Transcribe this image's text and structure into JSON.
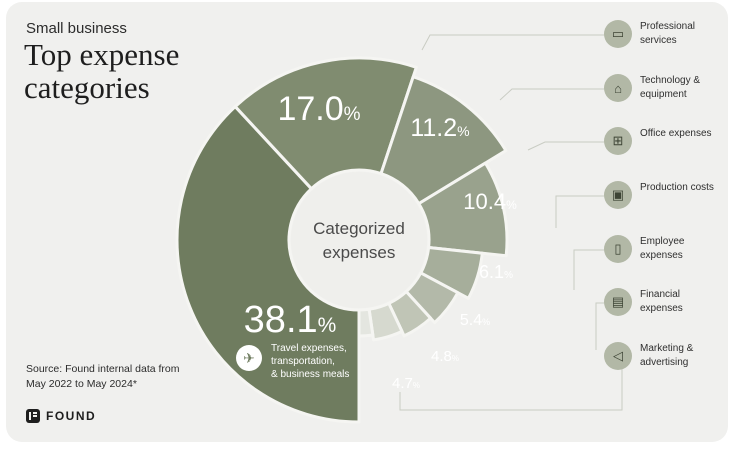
{
  "header": {
    "subtitle": "Small business",
    "title": "Top expense categories"
  },
  "source": "Source: Found internal data from May 2022 to May 2024*",
  "brand": "FOUND",
  "center_label": "Categorized expenses",
  "colors": {
    "travel": "#6f7c5f",
    "professional": "#808c70",
    "technology": "#8d9780",
    "office": "#99a28d",
    "production": "#a6ae9b",
    "employee": "#b3b9a9",
    "financial": "#c0c5b6",
    "marketing": "#d6d9cf",
    "icon_bg": "#b2b8a6"
  },
  "chart_data": {
    "type": "pie",
    "title": "Top expense categories",
    "subtitle": "Small business",
    "center_label": "Categorized expenses",
    "slices": [
      {
        "label": "Travel expenses, transportation, & business meals",
        "value": 38.1,
        "display": "38.1%"
      },
      {
        "label": "Professional services",
        "value": 17.0,
        "display": "17.0%"
      },
      {
        "label": "Technology & equipment",
        "value": 11.2,
        "display": "11.2%"
      },
      {
        "label": "Office expenses",
        "value": 10.4,
        "display": "10.4%"
      },
      {
        "label": "Production costs",
        "value": 6.1,
        "display": "6.1%"
      },
      {
        "label": "Employee expenses",
        "value": 5.4,
        "display": "5.4%"
      },
      {
        "label": "Financial expenses",
        "value": 4.8,
        "display": "4.8%"
      },
      {
        "label": "Marketing & advertising",
        "value": 4.7,
        "display": "4.7%"
      },
      {
        "label": "",
        "value": 2.3,
        "display": ""
      }
    ]
  },
  "legend": [
    {
      "label": "Professional services",
      "icon": "briefcase-icon",
      "glyph": "▭"
    },
    {
      "label": "Technology & equipment",
      "icon": "laptop-icon",
      "glyph": "⌂"
    },
    {
      "label": "Office expenses",
      "icon": "office-chair-icon",
      "glyph": "⊞"
    },
    {
      "label": "Production costs",
      "icon": "monitor-icon",
      "glyph": "▣"
    },
    {
      "label": "Employee expenses",
      "icon": "badge-icon",
      "glyph": "▯"
    },
    {
      "label": "Financial expenses",
      "icon": "money-icon",
      "glyph": "▤"
    },
    {
      "label": "Marketing & advertising",
      "icon": "megaphone-icon",
      "glyph": "◁"
    }
  ]
}
